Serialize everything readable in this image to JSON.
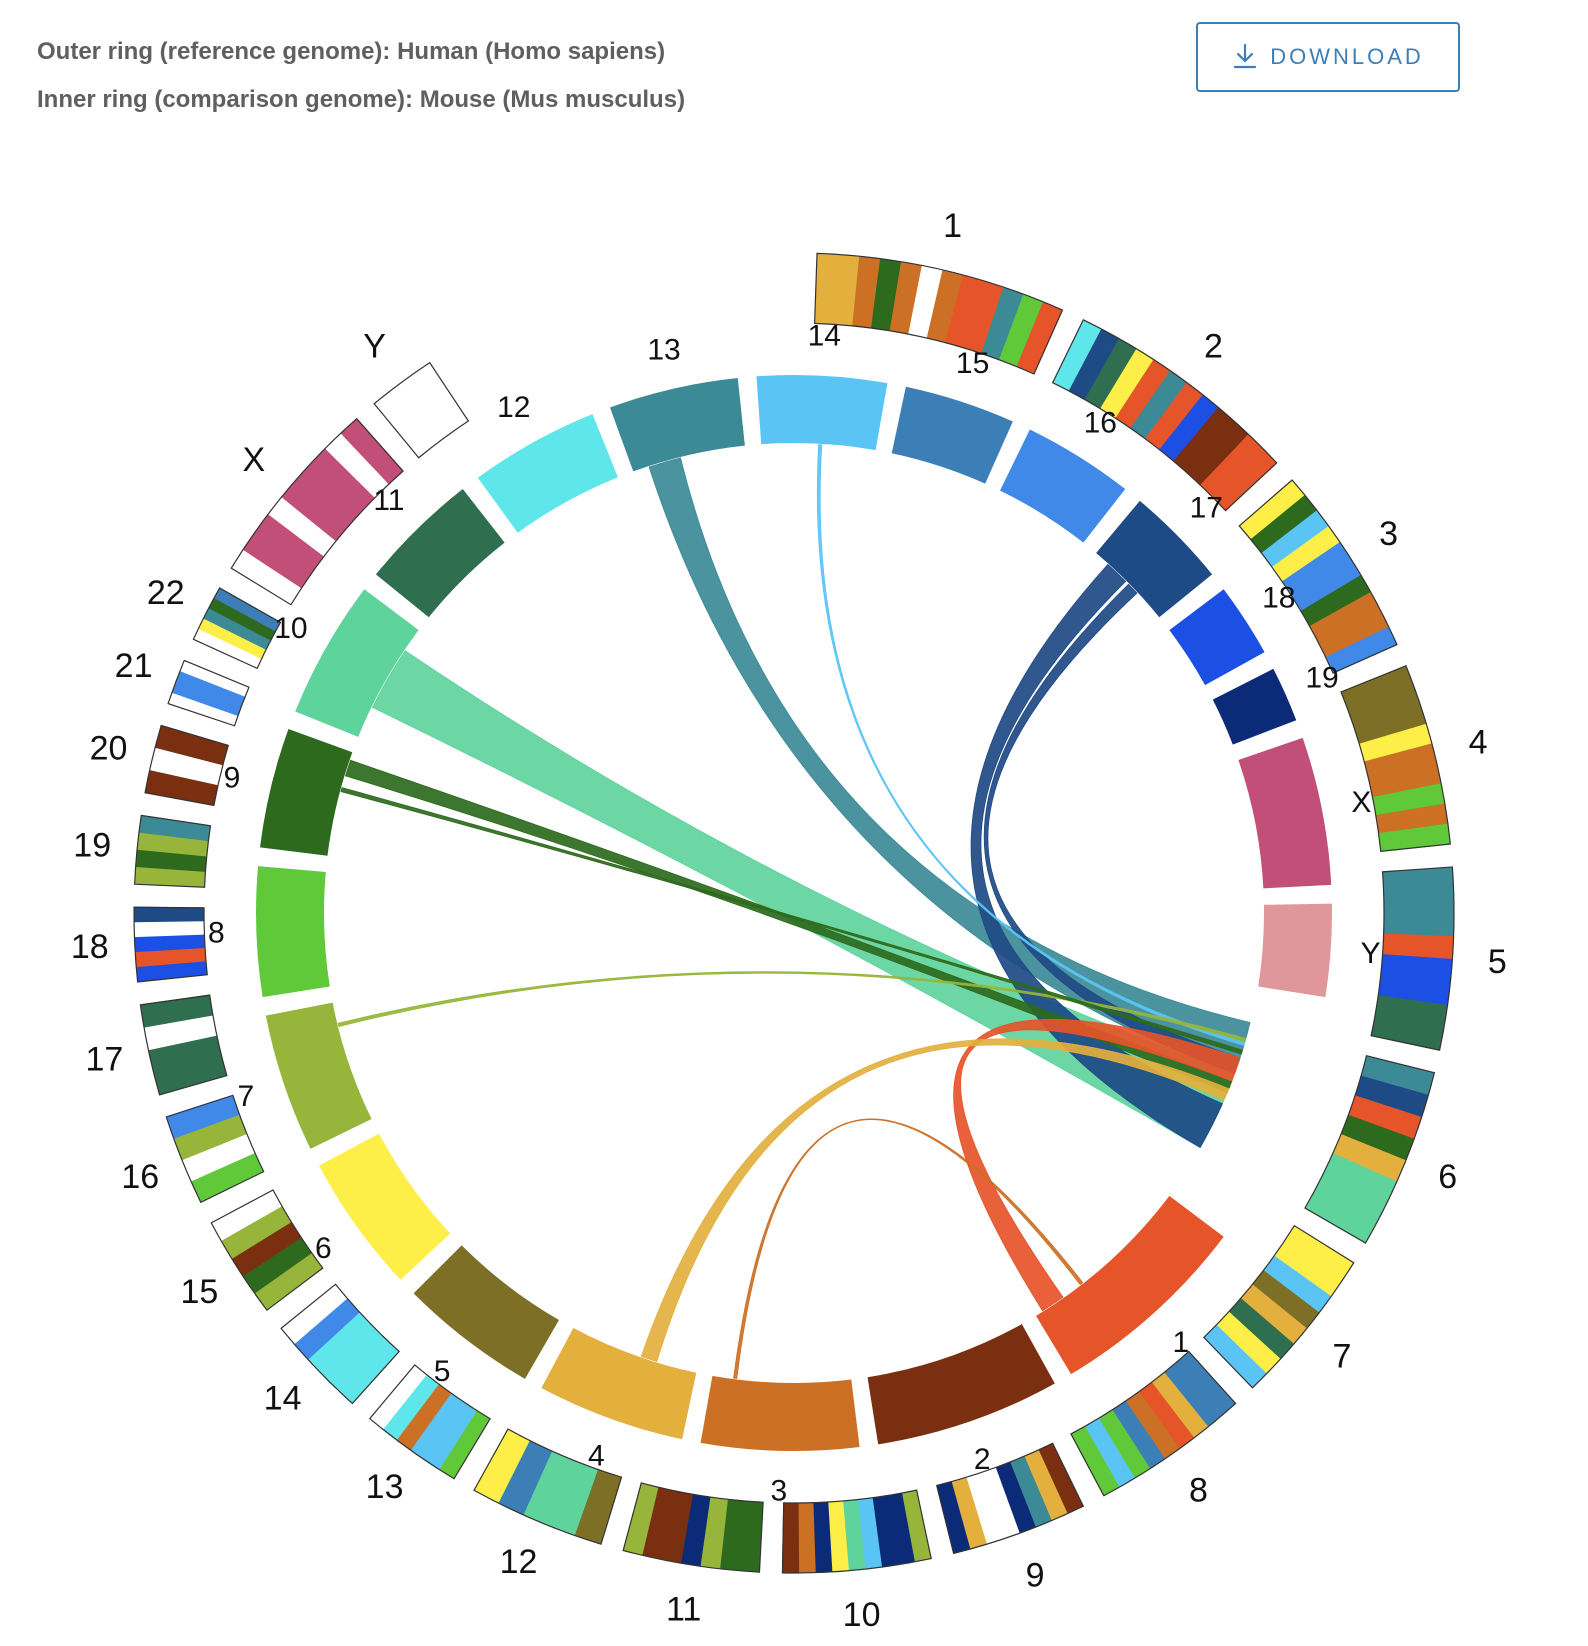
{
  "header": {
    "outer_ring_text": "Outer ring (reference genome): Human (Homo sapiens)",
    "inner_ring_text": "Inner ring (comparison genome): Mouse (Mus musculus)",
    "download_label": "DOWNLOAD",
    "download_icon": "download-arrow-icon"
  },
  "chart_data": {
    "type": "circos-synteny",
    "reference_genome": "Human (Homo sapiens)",
    "comparison_genome": "Mouse (Mus musculus)",
    "outer_ring": [
      {
        "label": "1",
        "start_deg": 2,
        "end_deg": 24,
        "colors": [
          "#e3b03e",
          "#e3b03e",
          "#cc7025",
          "#2d6a1d",
          "#cc7025",
          "#ffffff",
          "#cc7025",
          "#e65429",
          "#e65429",
          "#3c8a96",
          "#5fc93a",
          "#e65429"
        ]
      },
      {
        "label": "2",
        "start_deg": 26,
        "end_deg": 47,
        "colors": [
          "#5ee6ea",
          "#1e4a86",
          "#2f6e4f",
          "#fdef47",
          "#e65429",
          "#3c8a96",
          "#e65429",
          "#1c4fe3",
          "#7a3010",
          "#7a3010",
          "#e65429",
          "#e65429"
        ]
      },
      {
        "label": "3",
        "start_deg": 49,
        "end_deg": 66,
        "colors": [
          "#fdef47",
          "#2d6a1d",
          "#5ac5f5",
          "#fdef47",
          "#4089e8",
          "#4089e8",
          "#2d6a1d",
          "#cc7025",
          "#cc7025",
          "#4089e8"
        ]
      },
      {
        "label": "4",
        "start_deg": 68,
        "end_deg": 84,
        "colors": [
          "#7d7026",
          "#7d7026",
          "#7d7026",
          "#fdef47",
          "#cc7025",
          "#cc7025",
          "#5fc93a",
          "#cc7025",
          "#5fc93a"
        ]
      },
      {
        "label": "5",
        "start_deg": 86,
        "end_deg": 102,
        "colors": [
          "#3c8a96",
          "#3c8a96",
          "#3c8a96",
          "#e65429",
          "#1c4fe3",
          "#1c4fe3",
          "#2f6e4f",
          "#2f6e4f"
        ]
      },
      {
        "label": "6",
        "start_deg": 104,
        "end_deg": 120,
        "colors": [
          "#3c8a96",
          "#1e4a86",
          "#e65429",
          "#2d6a1d",
          "#e3b03e",
          "#5fd39c",
          "#5fd39c",
          "#5fd39c"
        ]
      },
      {
        "label": "7",
        "start_deg": 122,
        "end_deg": 136,
        "colors": [
          "#fdef47",
          "#fdef47",
          "#5ac5f5",
          "#7d7026",
          "#e3b03e",
          "#2f6e4f",
          "#fdef47",
          "#5ac5f5"
        ]
      },
      {
        "label": "8",
        "start_deg": 138,
        "end_deg": 152,
        "colors": [
          "#3c7fb6",
          "#3c7fb6",
          "#e3b03e",
          "#e65429",
          "#cc7025",
          "#3c7fb6",
          "#5fc93a",
          "#5ac5f5",
          "#5fc93a"
        ]
      },
      {
        "label": "9",
        "start_deg": 154,
        "end_deg": 166,
        "colors": [
          "#7a3010",
          "#e3b03e",
          "#3c8a96",
          "#0b2a78",
          "#ffffff",
          "#ffffff",
          "#e3b03e",
          "#0b2a78"
        ]
      },
      {
        "label": "10",
        "start_deg": 168,
        "end_deg": 181,
        "colors": [
          "#96b53a",
          "#0b2a78",
          "#0b2a78",
          "#5ac5f5",
          "#5fd39c",
          "#fdef47",
          "#0b2a78",
          "#cc7025",
          "#7a3010"
        ]
      },
      {
        "label": "11",
        "start_deg": 183,
        "end_deg": 195,
        "colors": [
          "#2d6a1d",
          "#2d6a1d",
          "#96b53a",
          "#0b2a78",
          "#7a3010",
          "#7a3010",
          "#96b53a"
        ]
      },
      {
        "label": "12",
        "start_deg": 197,
        "end_deg": 209,
        "colors": [
          "#7d7026",
          "#5fd39c",
          "#5fd39c",
          "#3c7fb6",
          "#fdef47"
        ]
      },
      {
        "label": "13",
        "start_deg": 211,
        "end_deg": 220,
        "colors": [
          "#5fc93a",
          "#5ac5f5",
          "#5ac5f5",
          "#cc7025",
          "#5ee6ea",
          "#ffffff"
        ]
      },
      {
        "label": "14",
        "start_deg": 222,
        "end_deg": 231,
        "colors": [
          "#5ee6ea",
          "#5ee6ea",
          "#5ee6ea",
          "#4089e8",
          "#ffffff"
        ]
      },
      {
        "label": "15",
        "start_deg": 233,
        "end_deg": 242,
        "colors": [
          "#96b53a",
          "#2d6a1d",
          "#7a3010",
          "#96b53a",
          "#ffffff"
        ]
      },
      {
        "label": "16",
        "start_deg": 244,
        "end_deg": 252,
        "colors": [
          "#5fc93a",
          "#ffffff",
          "#96b53a",
          "#4089e8"
        ]
      },
      {
        "label": "17",
        "start_deg": 254,
        "end_deg": 262,
        "colors": [
          "#2f6e4f",
          "#2f6e4f",
          "#ffffff",
          "#2f6e4f"
        ]
      },
      {
        "label": "18",
        "start_deg": 264,
        "end_deg": 270.5,
        "colors": [
          "#1c4fe3",
          "#e65429",
          "#1c4fe3",
          "#ffffff",
          "#1e4a86"
        ]
      },
      {
        "label": "19",
        "start_deg": 272.5,
        "end_deg": 278.5,
        "colors": [
          "#96b53a",
          "#2d6a1d",
          "#96b53a",
          "#3c8a96"
        ]
      },
      {
        "label": "20",
        "start_deg": 280.5,
        "end_deg": 286.5,
        "colors": [
          "#7a3010",
          "#ffffff",
          "#7a3010"
        ]
      },
      {
        "label": "21",
        "start_deg": 288.5,
        "end_deg": 292.5,
        "colors": [
          "#ffffff",
          "#4089e8",
          "#4089e8",
          "#ffffff"
        ]
      },
      {
        "label": "22",
        "start_deg": 294.5,
        "end_deg": 299.5,
        "colors": [
          "#ffffff",
          "#fdef47",
          "#3c8a96",
          "#2d6a1d",
          "#3c7fb6"
        ]
      },
      {
        "label": "X",
        "start_deg": 301.5,
        "end_deg": 318.5,
        "colors": [
          "#ffffff",
          "#c24f77",
          "#c24f77",
          "#ffffff",
          "#c24f77",
          "#c24f77",
          "#c24f77",
          "#ffffff",
          "#c24f77"
        ]
      },
      {
        "label": "Y",
        "start_deg": 320.5,
        "end_deg": 326.5,
        "colors": [
          "#ffffff"
        ]
      }
    ],
    "inner_ring": [
      {
        "label": "1",
        "start_deg": 127,
        "end_deg": 149,
        "color": "#e65429"
      },
      {
        "label": "2",
        "start_deg": 151,
        "end_deg": 171,
        "color": "#7a3010"
      },
      {
        "label": "3",
        "start_deg": 173,
        "end_deg": 190,
        "color": "#cc7025"
      },
      {
        "label": "4",
        "start_deg": 192,
        "end_deg": 208,
        "color": "#e3b03e"
      },
      {
        "label": "5",
        "start_deg": 210,
        "end_deg": 225,
        "color": "#7d7026"
      },
      {
        "label": "6",
        "start_deg": 227,
        "end_deg": 242,
        "color": "#fdef47"
      },
      {
        "label": "7",
        "start_deg": 244,
        "end_deg": 259,
        "color": "#96b53a"
      },
      {
        "label": "8",
        "start_deg": 261,
        "end_deg": 275,
        "color": "#5fc93a"
      },
      {
        "label": "9",
        "start_deg": 277,
        "end_deg": 290,
        "color": "#2d6a1d"
      },
      {
        "label": "10",
        "start_deg": 292,
        "end_deg": 307,
        "color": "#5fd39c"
      },
      {
        "label": "11",
        "start_deg": 309,
        "end_deg": 322,
        "color": "#2f6e4f"
      },
      {
        "label": "12",
        "start_deg": 324,
        "end_deg": 338,
        "color": "#5ee6ea"
      },
      {
        "label": "13",
        "start_deg": 340,
        "end_deg": 354,
        "color": "#3c8a96"
      },
      {
        "label": "14",
        "start_deg": 356,
        "end_deg": 10,
        "color": "#5ac5f5"
      },
      {
        "label": "15",
        "start_deg": 12,
        "end_deg": 24,
        "color": "#3c7fb6"
      },
      {
        "label": "16",
        "start_deg": 26,
        "end_deg": 38,
        "color": "#4089e8"
      },
      {
        "label": "17",
        "start_deg": 40,
        "end_deg": 51,
        "color": "#1e4a86"
      },
      {
        "label": "18",
        "start_deg": 53,
        "end_deg": 61,
        "color": "#1c4fe3"
      },
      {
        "label": "19",
        "start_deg": 63,
        "end_deg": 69,
        "color": "#0b2a78"
      },
      {
        "label": "X",
        "start_deg": 71,
        "end_deg": 87,
        "color": "#c24f77"
      },
      {
        "label": "Y",
        "start_deg": 89,
        "end_deg": 99,
        "color": "#e0979b"
      }
    ],
    "links": [
      {
        "from": "10",
        "from_range_deg": [
          296,
          304
        ],
        "to": "6",
        "to_range_deg": [
          110,
          120
        ],
        "color": "#5fd39c"
      },
      {
        "from": "13",
        "from_range_deg": [
          342,
          346
        ],
        "to": "6",
        "to_range_deg": [
          103.5,
          110
        ],
        "color": "#3c8a96"
      },
      {
        "from": "17",
        "from_range_deg": [
          42,
          45
        ],
        "to": "6",
        "to_range_deg": [
          114,
          120
        ],
        "color": "#1e4a86"
      },
      {
        "from": "17",
        "from_range_deg": [
          45.5,
          47
        ],
        "to": "6",
        "to_range_deg": [
          108,
          110
        ],
        "color": "#1e4a86"
      },
      {
        "from": "9",
        "from_range_deg": [
          287,
          289
        ],
        "to": "6",
        "to_range_deg": [
          111,
          112.5
        ],
        "color": "#2d6a1d"
      },
      {
        "from": "1",
        "from_range_deg": [
          145,
          148
        ],
        "to": "6",
        "to_range_deg": [
          108,
          111
        ],
        "color": "#e65429"
      },
      {
        "from": "4",
        "from_range_deg": [
          197,
          199
        ],
        "to": "6",
        "to_range_deg": [
          112,
          113.5
        ],
        "color": "#e3b03e"
      },
      {
        "from": "14",
        "from_range_deg": [
          3,
          3.4
        ],
        "to": "6",
        "to_range_deg": [
          106,
          106.4
        ],
        "color": "#5ac5f5"
      },
      {
        "from": "7",
        "from_range_deg": [
          256,
          256.4
        ],
        "to": "6",
        "to_range_deg": [
          105.5,
          105.9
        ],
        "color": "#96b53a"
      },
      {
        "from": "3",
        "from_range_deg": [
          187,
          187.4
        ],
        "to": "1",
        "to_range_deg": [
          142,
          142.4
        ],
        "color": "#cc7025"
      },
      {
        "from": "9",
        "from_range_deg": [
          285,
          285.5
        ],
        "to": "6",
        "to_range_deg": [
          107,
          107.5
        ],
        "color": "#2d6a1d"
      }
    ]
  }
}
